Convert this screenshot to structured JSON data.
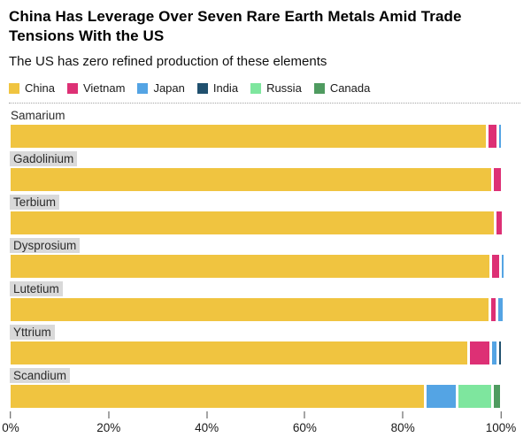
{
  "header": {
    "title": "China Has Leverage Over Seven Rare Earth Metals Amid Trade Tensions With the US",
    "subtitle": "The US has zero refined production of these elements"
  },
  "legend": [
    {
      "label": "China",
      "color": "#F0C440"
    },
    {
      "label": "Vietnam",
      "color": "#DD3075"
    },
    {
      "label": "Japan",
      "color": "#54A4E4"
    },
    {
      "label": "India",
      "color": "#20506E"
    },
    {
      "label": "Russia",
      "color": "#7EE69E"
    },
    {
      "label": "Canada",
      "color": "#4F9B60"
    }
  ],
  "chart_data": {
    "type": "bar",
    "orientation": "horizontal",
    "stacked": true,
    "unit": "percent of refined production",
    "title": "China Has Leverage Over Seven Rare Earth Metals Amid Trade Tensions With the US",
    "subtitle": "The US has zero refined production of these elements",
    "categories": [
      {
        "label": "Samarium",
        "label_highlighted": false
      },
      {
        "label": "Gadolinium",
        "label_highlighted": true
      },
      {
        "label": "Terbium",
        "label_highlighted": true
      },
      {
        "label": "Dysprosium",
        "label_highlighted": true
      },
      {
        "label": "Lutetium",
        "label_highlighted": true
      },
      {
        "label": "Yttrium",
        "label_highlighted": true
      },
      {
        "label": "Scandium",
        "label_highlighted": true
      }
    ],
    "series": [
      {
        "name": "China",
        "values": [
          96.9,
          98.1,
          98.5,
          97.6,
          97.5,
          93.2,
          84.3
        ]
      },
      {
        "name": "Vietnam",
        "values": [
          1.7,
          1.3,
          1.1,
          1.5,
          0.8,
          3.9,
          0
        ]
      },
      {
        "name": "Japan",
        "values": [
          0.4,
          0,
          0,
          0.3,
          1.0,
          0.9,
          5.9
        ]
      },
      {
        "name": "India",
        "values": [
          0,
          0,
          0,
          0,
          0,
          0.4,
          0
        ]
      },
      {
        "name": "Russia",
        "values": [
          0,
          0,
          0,
          0,
          0,
          0,
          6.8
        ]
      },
      {
        "name": "Canada",
        "values": [
          0,
          0,
          0,
          0,
          0,
          0,
          1.2
        ]
      }
    ],
    "xlim": [
      0,
      100
    ],
    "x_ticks": [
      {
        "label": "0%",
        "value": 0
      },
      {
        "label": "20%",
        "value": 20
      },
      {
        "label": "40%",
        "value": 40
      },
      {
        "label": "60%",
        "value": 60
      },
      {
        "label": "80%",
        "value": 80
      },
      {
        "label": "100%",
        "value": 100
      }
    ],
    "legend_position": "top",
    "grid": false
  }
}
